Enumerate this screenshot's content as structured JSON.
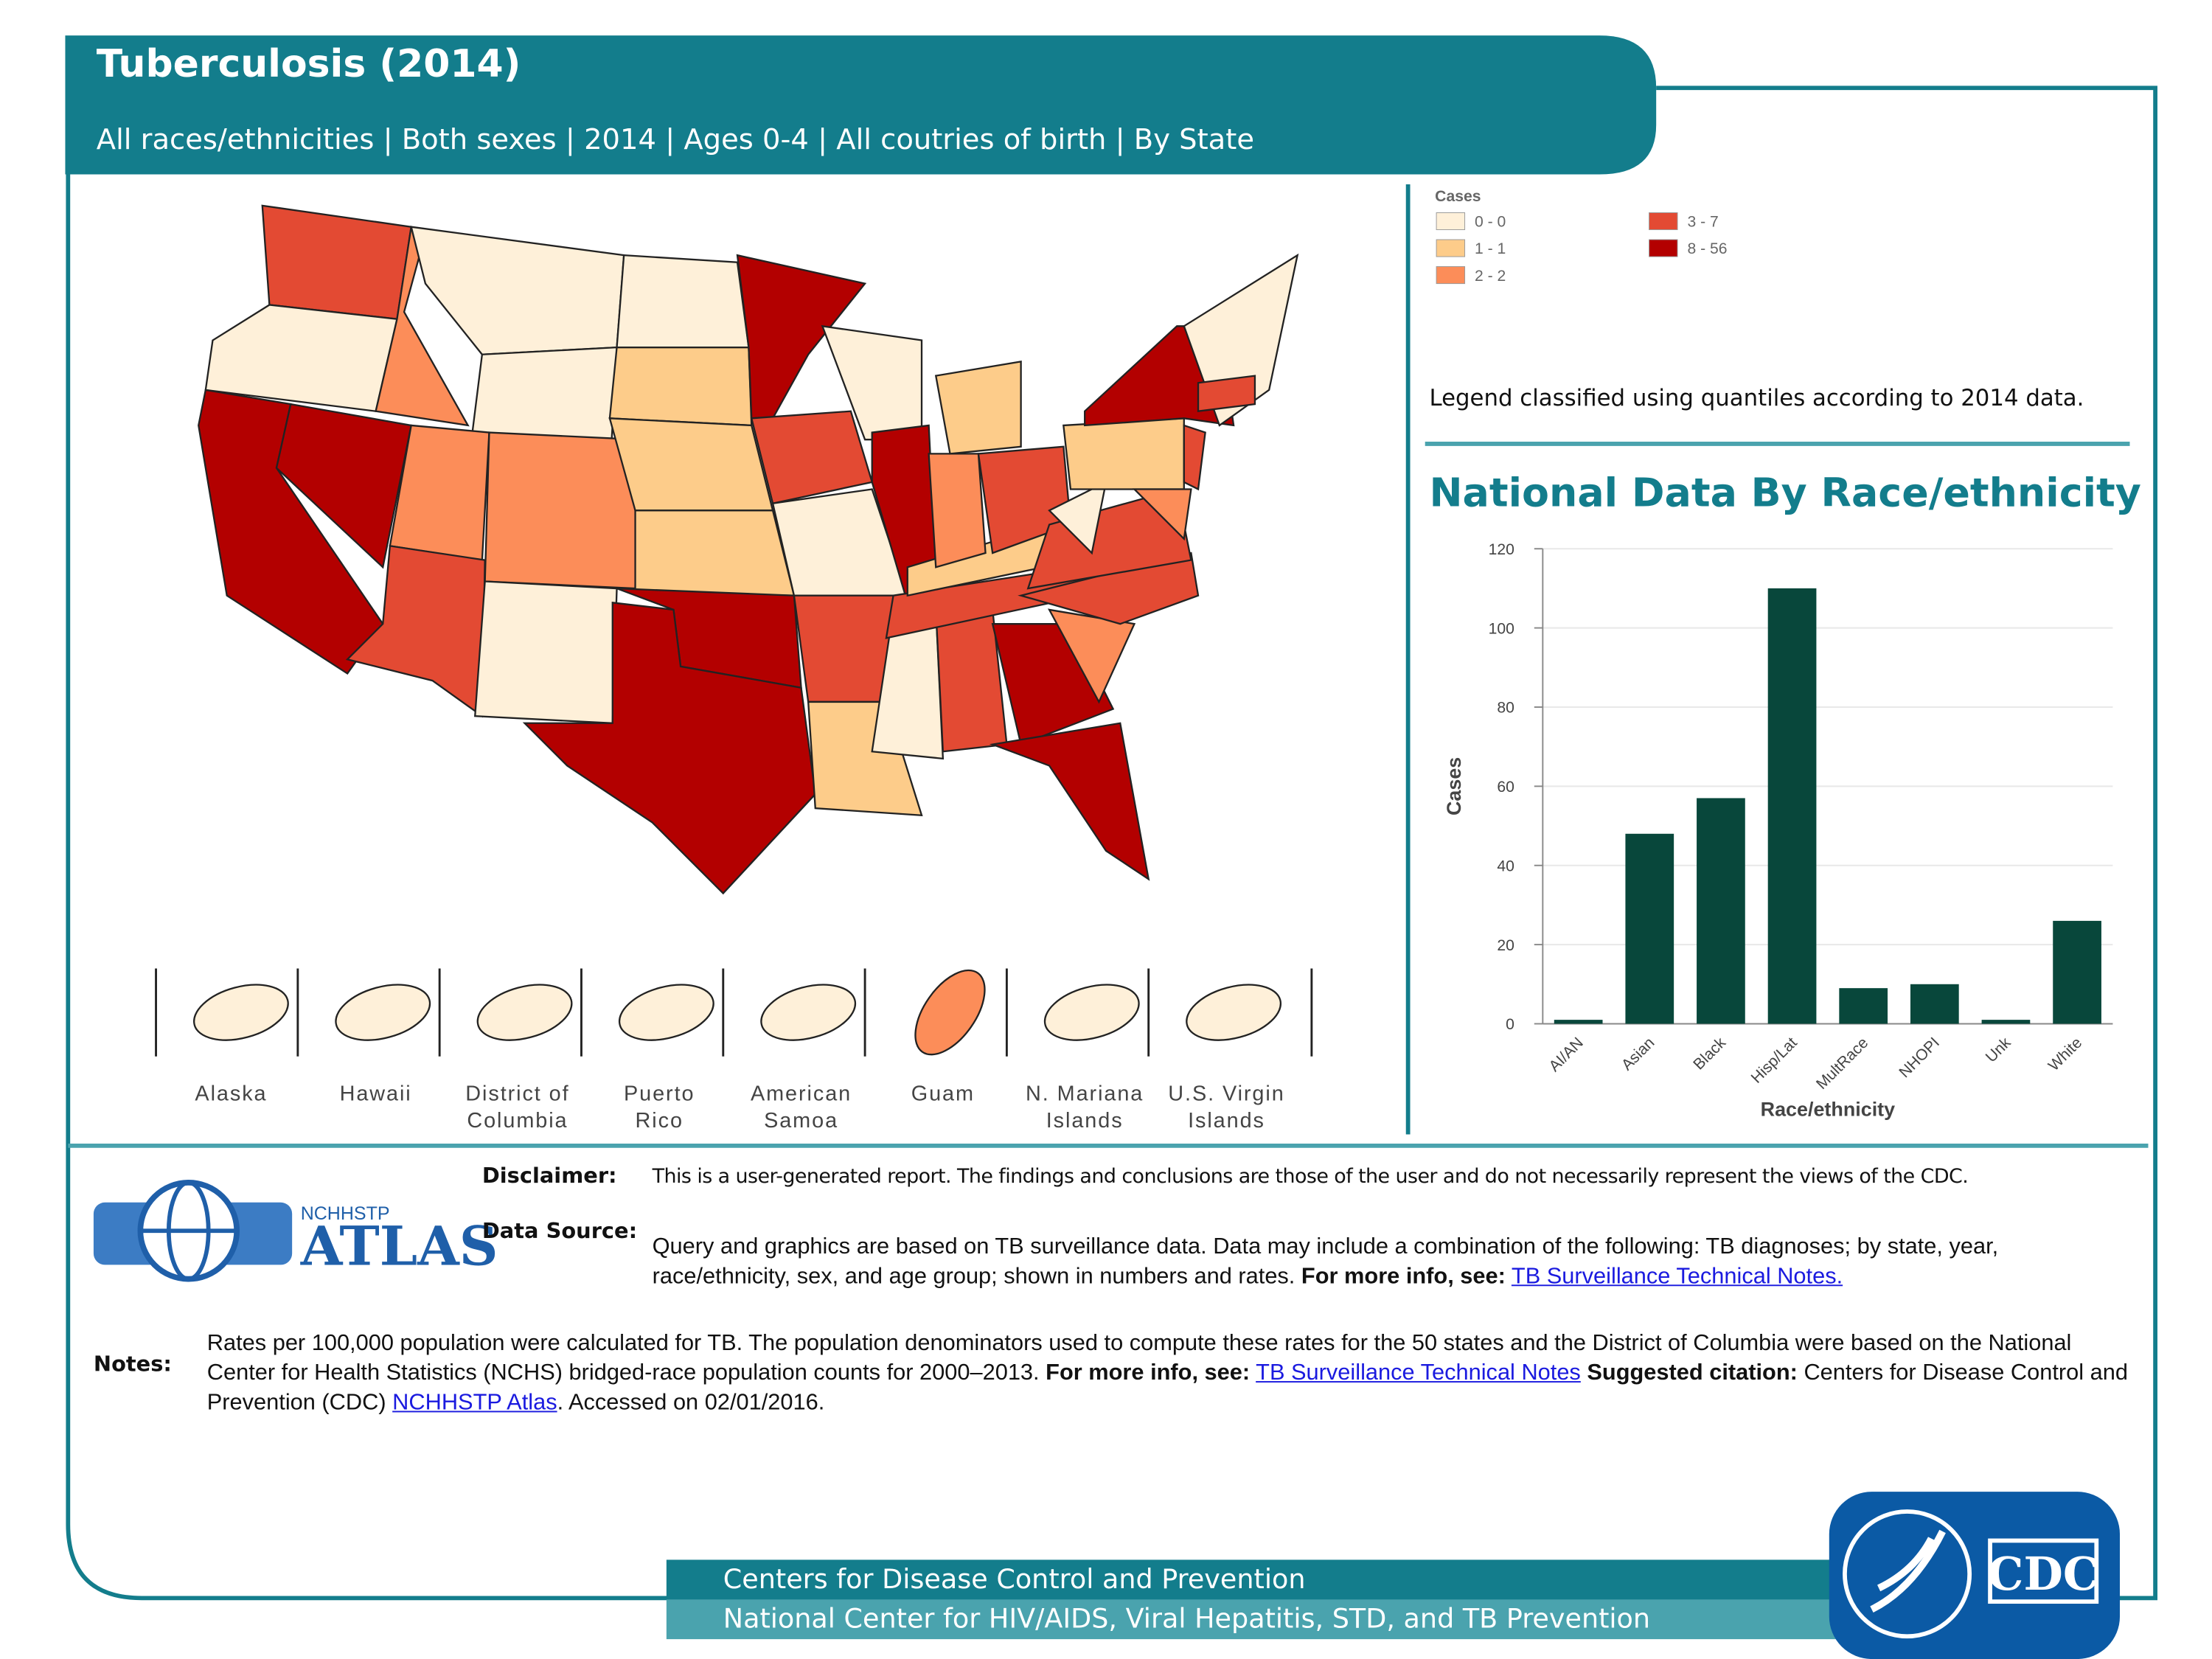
{
  "header": {
    "title": "Tuberculosis (2014)",
    "subtitle": "All races/ethnicities | Both sexes | 2014 | Ages 0-4 | All coutries of birth | By State"
  },
  "map": {
    "legend_title": "Cases",
    "legend": [
      {
        "label": "0 - 0",
        "color": "#fef0d9"
      },
      {
        "label": "1 - 1",
        "color": "#fdcc8a"
      },
      {
        "label": "2 - 2",
        "color": "#fc8d59"
      },
      {
        "label": "3 - 7",
        "color": "#e34a33"
      },
      {
        "label": "8 - 56",
        "color": "#b30000"
      }
    ],
    "legend_note": "Legend classified using quantiles according to 2014 data.",
    "territories": [
      [
        "Alaska"
      ],
      [
        "Hawaii"
      ],
      [
        "District of",
        "Columbia"
      ],
      [
        "Puerto",
        "Rico"
      ],
      [
        "American",
        "Samoa"
      ],
      [
        "Guam"
      ],
      [
        "N. Mariana",
        "Islands"
      ],
      [
        "U.S. Virgin",
        "Islands"
      ]
    ]
  },
  "chart_data": {
    "type": "bar",
    "title": "National Data By Race/ethnicity",
    "x_label": "Race/ethnicity",
    "y_label": "Cases",
    "categories": [
      "AI/AN",
      "Asian",
      "Black",
      "Hisp/Lat",
      "MultRace",
      "NHOPI",
      "Unk",
      "White"
    ],
    "values": [
      1,
      48,
      57,
      110,
      9,
      10,
      1,
      26
    ],
    "color": "#08473b",
    "ylim": [
      0,
      120
    ],
    "yticks": [
      0,
      20,
      40,
      60,
      80,
      100,
      120
    ],
    "grid": true
  },
  "footer": {
    "disclaimer_label": "Disclaimer:",
    "disclaimer": "This is a user-generated report. The findings and conclusions are those of the user and do not necessarily represent the views of the CDC.",
    "data_source_label": "Data Source:",
    "data_source": [
      "Query and graphics are based on TB surveillance data. Data may include a combination of the following: TB diagnoses; by state, year, race/ethnicity, sex, and age group; shown in numbers and rates.",
      "For more info, see:",
      "TB Surveillance Technical Notes."
    ],
    "notes_label": "Notes:",
    "notes": [
      "Rates per 100,000 population were calculated for TB. The population denominators used to compute these rates for the 50 states and the District of Columbia were based on the National Center for Health Statistics (NCHS) bridged-race population counts for 2000–2013.",
      "For more info, see:",
      "TB Surveillance Technical Notes",
      "Suggested citation:",
      "Centers for Disease Control and Prevention (CDC)",
      "NCHHSTP Atlas",
      ". Accessed on 02/01/2016."
    ],
    "logo_small": "NCHHSTP",
    "logo": "ATLAS",
    "agency": "Centers for Disease Control and Prevention",
    "center": "National Center for HIV/AIDS, Viral Hepatitis, STD, and TB Prevention",
    "cdc": "CDC"
  }
}
